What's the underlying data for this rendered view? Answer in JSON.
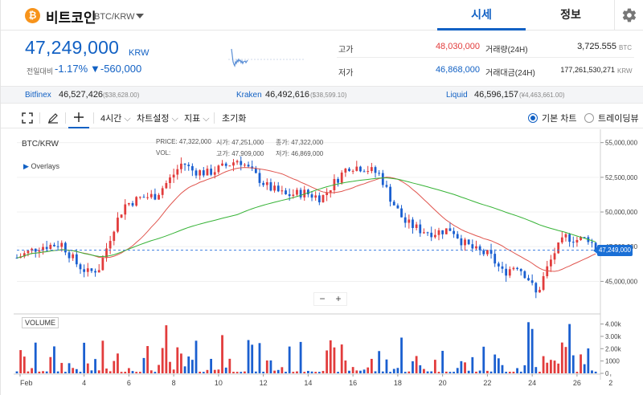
{
  "header": {
    "coin_name": "비트코인",
    "pair": "BTC/KRW",
    "tabs": [
      "시세",
      "정보"
    ]
  },
  "price_panel": {
    "price": "47,249,000",
    "unit": "KRW",
    "change_label": "전일대비",
    "change_pct": "-1.17%",
    "change_abs": "▼-560,000",
    "stats": {
      "high_label": "고가",
      "high": "48,030,000",
      "low_label": "저가",
      "low": "46,868,000",
      "volume_label": "거래량(24H)",
      "volume": "3,725.555",
      "volume_unit": "BTC",
      "turnover_label": "거래대금(24H)",
      "turnover": "177,261,530,271",
      "turnover_unit": "KRW"
    }
  },
  "exchanges": [
    {
      "name": "Bitfinex",
      "krw": "46,527,426",
      "usd": "($38,628.00)"
    },
    {
      "name": "Kraken",
      "krw": "46,492,616",
      "usd": "($38,599.10)"
    },
    {
      "name": "Liquid",
      "krw": "46,596,157",
      "usd": "(¥4,463,661.00)"
    }
  ],
  "toolbar": {
    "interval": "4시간",
    "chart_settings": "차트설정",
    "indicators": "지표",
    "reset": "초기화",
    "basic_chart": "기본 차트",
    "tradingview": "트레이딩뷰"
  },
  "chart_labels": {
    "pair": "BTC/KRW",
    "overlays": "Overlays",
    "ohlc": {
      "price_label": "PRICE:",
      "price": "47,322,000",
      "open_label": "시가:",
      "open": "47,251,000",
      "close_label": "종가:",
      "close": "47,322,000",
      "vol_label": "VOL:",
      "vol": "",
      "high_label": "고가:",
      "high": "47,909,000",
      "low_label": "저가:",
      "low": "46,869,000"
    },
    "volume_label": "VOLUME",
    "current_price_tag": "47,249,000",
    "zoom_minus": "−",
    "zoom_plus": "+"
  },
  "colors": {
    "accent": "#1261c4",
    "up": "#e23c3c",
    "down": "#1a5fd0",
    "ma_short": "#e0554e",
    "ma_long": "#36b336",
    "coin": "#f7931a"
  },
  "chart_data": {
    "type": "candlestick",
    "x_tick_labels": [
      "Feb",
      "4",
      "6",
      "8",
      "10",
      "12",
      "14",
      "16",
      "18",
      "20",
      "22",
      "24",
      "26",
      "2"
    ],
    "y_tick_labels": [
      "55,000,000",
      "52,500,000",
      "50,000,000",
      "47,500,000",
      "45,000,000"
    ],
    "ylim": [
      43000000,
      55500000
    ],
    "volume_tick_labels": [
      "4.00k",
      "3.00k",
      "2.00k",
      "1000",
      "0"
    ],
    "volume_ylim": [
      0,
      4300
    ],
    "current_price": 47249000,
    "days": [
      1.0,
      26.9
    ],
    "close_anchors": [
      [
        1.0,
        46700000
      ],
      [
        2.0,
        47500000
      ],
      [
        3.0,
        47700000
      ],
      [
        3.7,
        46200000
      ],
      [
        4.2,
        45600000
      ],
      [
        4.7,
        46000000
      ],
      [
        5.3,
        48800000
      ],
      [
        5.8,
        50500000
      ],
      [
        6.5,
        51000000
      ],
      [
        7.2,
        51200000
      ],
      [
        7.9,
        52500000
      ],
      [
        8.4,
        53600000
      ],
      [
        8.8,
        53000000
      ],
      [
        9.5,
        52800000
      ],
      [
        10.3,
        53300000
      ],
      [
        10.9,
        53800000
      ],
      [
        11.6,
        52700000
      ],
      [
        12.2,
        51800000
      ],
      [
        13.0,
        51200000
      ],
      [
        13.8,
        51400000
      ],
      [
        14.6,
        51000000
      ],
      [
        15.2,
        52200000
      ],
      [
        15.8,
        53300000
      ],
      [
        16.5,
        53200000
      ],
      [
        17.2,
        52700000
      ],
      [
        17.7,
        50900000
      ],
      [
        18.3,
        49300000
      ],
      [
        19.0,
        48700000
      ],
      [
        19.6,
        48500000
      ],
      [
        20.4,
        48800000
      ],
      [
        20.9,
        47800000
      ],
      [
        21.5,
        47200000
      ],
      [
        22.1,
        46900000
      ],
      [
        22.7,
        45600000
      ],
      [
        23.3,
        46200000
      ],
      [
        23.8,
        45300000
      ],
      [
        24.2,
        44000000
      ],
      [
        24.6,
        45700000
      ],
      [
        25.0,
        47100000
      ],
      [
        25.5,
        48200000
      ],
      [
        26.0,
        48000000
      ],
      [
        26.5,
        48100000
      ],
      [
        26.9,
        47250000
      ]
    ],
    "series": [
      {
        "name": "MA short",
        "kind": "line"
      },
      {
        "name": "MA long",
        "kind": "line"
      }
    ]
  }
}
